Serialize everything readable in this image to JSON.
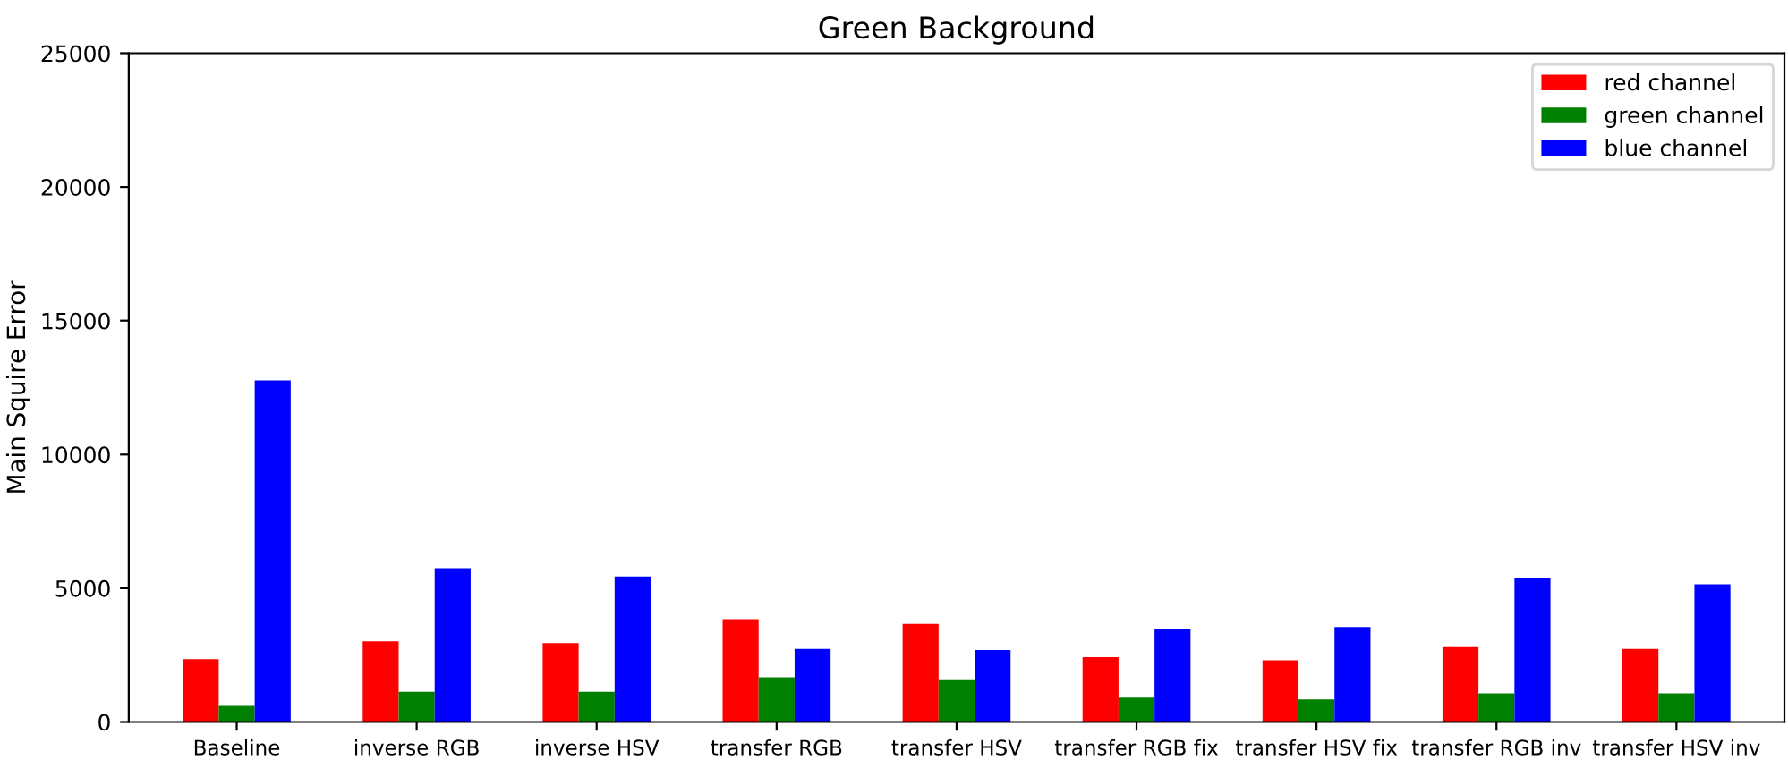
{
  "chart_data": {
    "type": "bar",
    "title": "Green Background",
    "ylabel": "Main Squire Error",
    "categories": [
      "Baseline",
      "inverse RGB",
      "inverse HSV",
      "transfer RGB",
      "transfer HSV",
      "transfer RGB fix",
      "transfer HSV fix",
      "transfer RGB inv",
      "transfer HSV inv"
    ],
    "series": [
      {
        "name": "red channel",
        "color": "#ff0000",
        "values": [
          2350,
          3020,
          2950,
          3840,
          3670,
          2420,
          2310,
          2800,
          2730
        ]
      },
      {
        "name": "green channel",
        "color": "#008000",
        "values": [
          600,
          1130,
          1130,
          1670,
          1600,
          910,
          840,
          1070,
          1070
        ]
      },
      {
        "name": "blue channel",
        "color": "#0000ff",
        "values": [
          12770,
          5750,
          5440,
          2730,
          2690,
          3490,
          3550,
          5370,
          5150
        ]
      }
    ],
    "ylim": [
      0,
      25000
    ],
    "yticks": [
      0,
      5000,
      10000,
      15000,
      20000,
      25000
    ],
    "grid": false,
    "legend": "top right"
  }
}
